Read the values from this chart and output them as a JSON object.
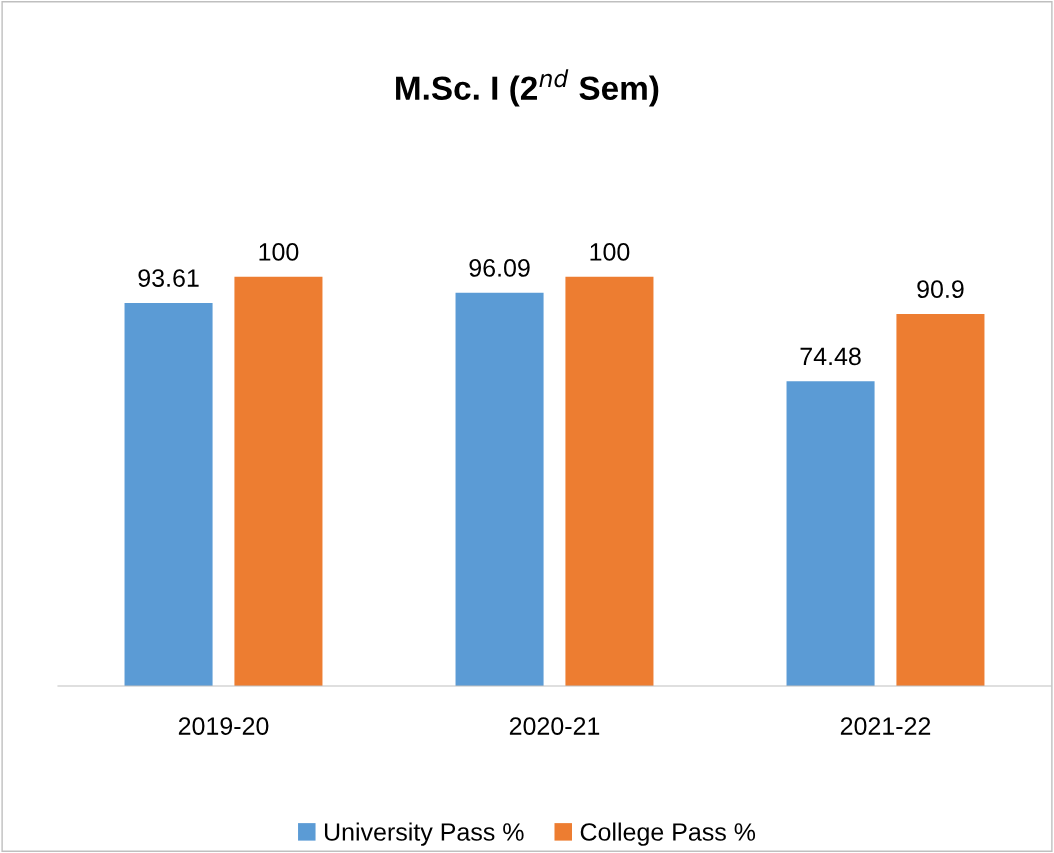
{
  "chart_data": {
    "type": "bar",
    "title": "M.Sc. I (2$^{nd}$ Sem)",
    "categories": [
      "2019-20",
      "2020-21",
      "2021-22"
    ],
    "series": [
      {
        "name": "University Pass %",
        "color": "#5b9bd5",
        "values": [
          93.61,
          96.09,
          74.48
        ]
      },
      {
        "name": "College Pass %",
        "color": "#ed7d31",
        "values": [
          100,
          100,
          90.9
        ]
      }
    ],
    "data_labels": true,
    "legend": "bottom",
    "grid": false
  }
}
